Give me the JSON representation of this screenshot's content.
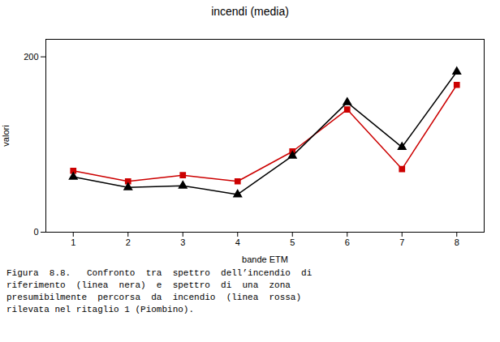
{
  "chart_data": {
    "type": "line",
    "title": "incendi (media)",
    "xlabel": "bande ETM",
    "ylabel": "valori",
    "x": [
      1,
      2,
      3,
      4,
      5,
      6,
      7,
      8
    ],
    "series": [
      {
        "color": "#cc0000",
        "marker": "square",
        "values": [
          70,
          58,
          65,
          58,
          92,
          140,
          72,
          168
        ]
      },
      {
        "color": "#000000",
        "marker": "triangle",
        "values": [
          63,
          51,
          53,
          43,
          87,
          148,
          97,
          183
        ]
      }
    ],
    "xlim": [
      0.5,
      8.5
    ],
    "xticks": [
      1,
      2,
      3,
      4,
      5,
      6,
      7,
      8
    ],
    "ylim": [
      0,
      220
    ],
    "yticks": [
      0,
      200
    ],
    "grid": false,
    "caption": [
      "Figura  8.8.   Confronto  tra  spettro  dell’incendio  di",
      "riferimento  (linea  nera)  e  spettro  di  una  zona",
      "presumibilmente  percorsa  da  incendio  (linea  rossa)",
      "rilevata nel ritaglio 1 (Piombino)."
    ]
  }
}
